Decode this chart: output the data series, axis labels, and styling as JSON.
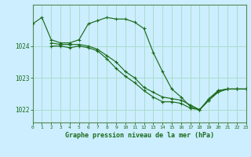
{
  "background_color": "#cceeff",
  "grid_color": "#aaddcc",
  "line_color": "#1a6b1a",
  "marker_color": "#1a6b1a",
  "title": "Graphe pression niveau de la mer (hPa)",
  "xlim": [
    0,
    23
  ],
  "ylim": [
    1021.6,
    1025.3
  ],
  "yticks": [
    1022,
    1023,
    1024
  ],
  "xticks": [
    0,
    1,
    2,
    3,
    4,
    5,
    6,
    7,
    8,
    9,
    10,
    11,
    12,
    13,
    14,
    15,
    16,
    17,
    18,
    19,
    20,
    21,
    22,
    23
  ],
  "series": [
    {
      "x": [
        0,
        1,
        2,
        3,
        4,
        5,
        6,
        7,
        8,
        9,
        10,
        11,
        12,
        13,
        14,
        15,
        16,
        17,
        18,
        19,
        20,
        21,
        22,
        23
      ],
      "y": [
        1024.7,
        1024.9,
        1024.2,
        1024.1,
        1024.1,
        1024.2,
        1024.7,
        1024.8,
        1024.9,
        1024.85,
        1024.85,
        1024.75,
        1024.55,
        1023.8,
        1023.2,
        1022.65,
        1022.4,
        1022.1,
        1022.0,
        1022.35,
        1022.6,
        1022.65,
        1022.65,
        1022.65
      ]
    },
    {
      "x": [
        2,
        3,
        4,
        5,
        6,
        7,
        8,
        9,
        10,
        11,
        12,
        13,
        14,
        15,
        16,
        17,
        18,
        19,
        20,
        21,
        22,
        23
      ],
      "y": [
        1024.1,
        1024.05,
        1024.05,
        1024.05,
        1024.0,
        1023.9,
        1023.7,
        1023.5,
        1023.2,
        1023.0,
        1022.7,
        1022.55,
        1022.4,
        1022.35,
        1022.3,
        1022.15,
        1022.0,
        1022.3,
        1022.6,
        1022.65,
        1022.65,
        1022.65
      ]
    },
    {
      "x": [
        2,
        3,
        4,
        5,
        6,
        7,
        8,
        9,
        10,
        11,
        12,
        13,
        14,
        15,
        16,
        17,
        18,
        19,
        20,
        21,
        22,
        23
      ],
      "y": [
        1024.0,
        1024.0,
        1023.95,
        1024.0,
        1023.95,
        1023.85,
        1023.6,
        1023.3,
        1023.05,
        1022.85,
        1022.6,
        1022.4,
        1022.25,
        1022.25,
        1022.2,
        1022.05,
        1022.0,
        1022.3,
        1022.55,
        1022.65,
        1022.65,
        1022.65
      ]
    }
  ]
}
